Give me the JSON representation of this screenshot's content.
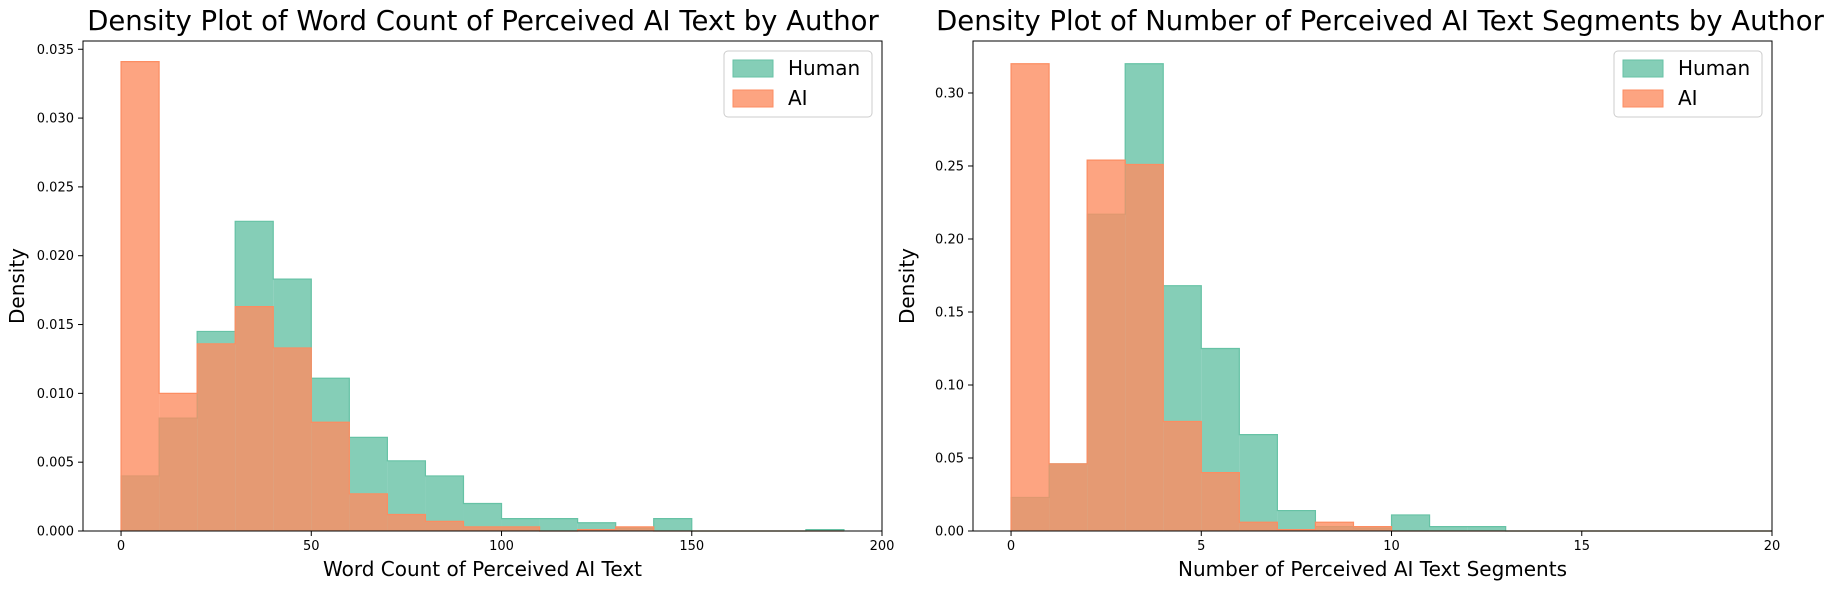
{
  "colors": {
    "human": "#66c2a5",
    "ai": "#fc8d62"
  },
  "chart_data": [
    {
      "type": "histogram",
      "title": "Density Plot of Word Count of Perceived AI Text by Author",
      "xlabel": "Word Count of Perceived AI Text",
      "ylabel": "Density",
      "xlim": [
        -10,
        200
      ],
      "ylim": [
        0,
        0.0356
      ],
      "xticks": [
        0,
        50,
        100,
        150,
        200
      ],
      "yticks": [
        0.0,
        0.005,
        0.01,
        0.015,
        0.02,
        0.025,
        0.03,
        0.035
      ],
      "ytick_decimals": 3,
      "legend_position": "top-right",
      "bin_edges": [
        0,
        10,
        20,
        30,
        40,
        50,
        60,
        70,
        80,
        90,
        100,
        110,
        120,
        130,
        140,
        150,
        160,
        170,
        180,
        190
      ],
      "series": [
        {
          "name": "Human",
          "values": [
            0.004,
            0.0082,
            0.0145,
            0.0225,
            0.0183,
            0.0111,
            0.0068,
            0.0051,
            0.004,
            0.002,
            0.0009,
            0.0009,
            0.0006,
            0.0002,
            0.0009,
            0.0,
            0.0,
            0.0,
            0.0001
          ]
        },
        {
          "name": "AI",
          "values": [
            0.0341,
            0.01,
            0.0136,
            0.0163,
            0.0133,
            0.0079,
            0.0027,
            0.0012,
            0.0007,
            0.0003,
            0.0003,
            0.0,
            0.0001,
            0.0003,
            0.0,
            0.0,
            0.0,
            0.0,
            0.0
          ]
        }
      ]
    },
    {
      "type": "histogram",
      "title": "Density Plot of Number of Perceived AI Text Segments by Author",
      "xlabel": "Number of Perceived AI Text Segments",
      "ylabel": "Density",
      "xlim": [
        -1,
        20
      ],
      "ylim": [
        0,
        0.3356
      ],
      "xticks": [
        0,
        5,
        10,
        15,
        20
      ],
      "yticks": [
        0.0,
        0.05,
        0.1,
        0.15,
        0.2,
        0.25,
        0.3
      ],
      "ytick_decimals": 2,
      "legend_position": "top-right",
      "bin_edges": [
        0,
        1,
        2,
        3,
        4,
        5,
        6,
        7,
        8,
        9,
        10,
        11,
        12,
        13,
        14,
        15,
        16,
        17,
        18,
        19,
        20
      ],
      "series": [
        {
          "name": "Human",
          "values": [
            0.023,
            0.046,
            0.217,
            0.32,
            0.168,
            0.125,
            0.066,
            0.014,
            0.003,
            0.002,
            0.011,
            0.003,
            0.003,
            0.0,
            0.0,
            0.0,
            0.0,
            0.0,
            0.0,
            0.0
          ]
        },
        {
          "name": "AI",
          "values": [
            0.32,
            0.046,
            0.254,
            0.251,
            0.075,
            0.04,
            0.006,
            0.001,
            0.006,
            0.003,
            0.0,
            0.0,
            0.0,
            0.0,
            0.0,
            0.0,
            0.0,
            0.0,
            0.0,
            0.0
          ]
        }
      ]
    }
  ]
}
